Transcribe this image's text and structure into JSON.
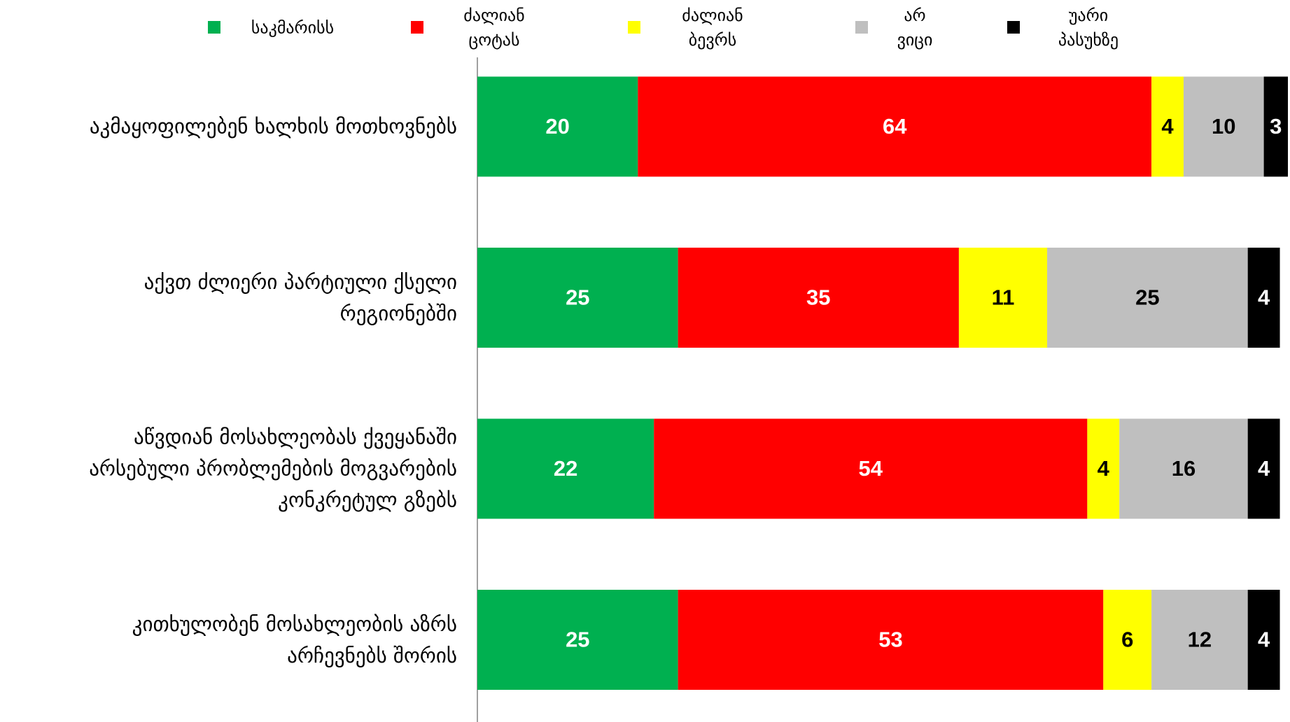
{
  "chart_data": {
    "type": "stacked_bar_horizontal",
    "categories": [
      "აკმაყოფილებენ ხალხის მოთხოვნებს",
      "აქვთ ძლიერი პარტიული ქსელი\nრეგიონებში",
      "აწვდიან მოსახლეობას ქვეყანაში\nარსებული პრობლემების  მოგვარების\nკონკრეტულ გზებს",
      "კითხულობენ მოსახლეობის აზრს\nარჩევნებს შორის"
    ],
    "series": [
      {
        "name": "საკმარისს",
        "color": "#00b050",
        "label_color": "#ffffff",
        "values": [
          20,
          25,
          22,
          25
        ]
      },
      {
        "name": "ძალიან\nცოტას",
        "color": "#ff0000",
        "label_color": "#ffffff",
        "values": [
          64,
          35,
          54,
          53
        ]
      },
      {
        "name": "ძალიან\nბევრს",
        "color": "#ffff00",
        "label_color": "#000000",
        "values": [
          4,
          11,
          4,
          6
        ]
      },
      {
        "name": "არ\nვიცი",
        "color": "#bfbfbf",
        "label_color": "#000000",
        "values": [
          10,
          25,
          16,
          12
        ]
      },
      {
        "name": "უარი\nპასუხზე",
        "color": "#000000",
        "label_color": "#ffffff",
        "values": [
          3,
          4,
          4,
          4
        ]
      }
    ],
    "xlim": [
      0,
      101
    ],
    "legend": "top"
  }
}
